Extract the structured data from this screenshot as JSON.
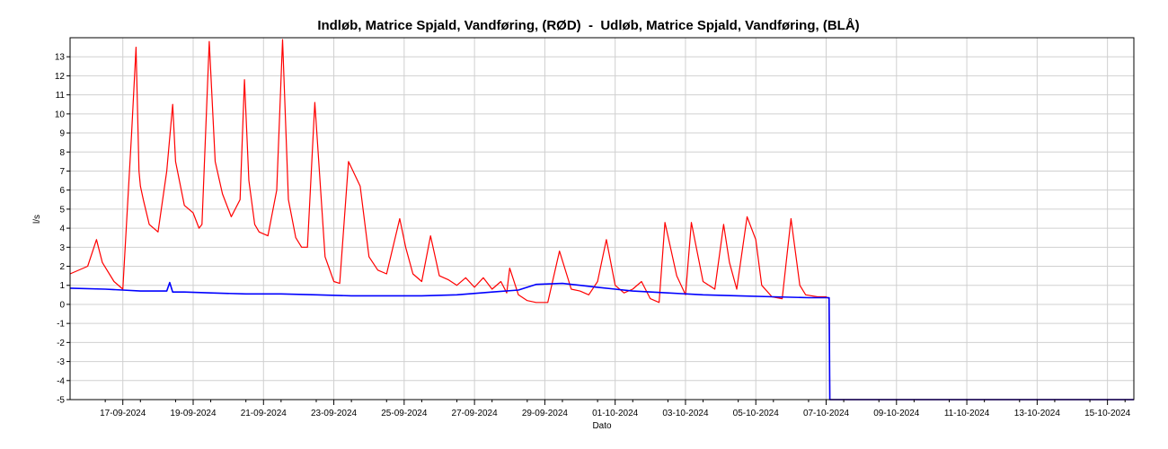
{
  "chart_data": {
    "type": "line",
    "title": "Indløb, Matrice Spjald, Vandføring, (RØD)  -  Udløb, Matrice Spjald, Vandføring, (BLÅ)",
    "xlabel": "Dato",
    "ylabel": "l/s",
    "ylim": [
      -5,
      14
    ],
    "yticks": [
      -5,
      -4,
      -3,
      -2,
      -1,
      0,
      1,
      2,
      3,
      4,
      5,
      6,
      7,
      8,
      9,
      10,
      11,
      12,
      13
    ],
    "xlim": [
      "2024-09-16T00:00",
      "2024-10-16T06:00"
    ],
    "xtick_labels": [
      "17-09-2024",
      "19-09-2024",
      "21-09-2024",
      "23-09-2024",
      "25-09-2024",
      "27-09-2024",
      "29-09-2024",
      "01-10-2024",
      "03-10-2024",
      "05-10-2024",
      "07-10-2024",
      "09-10-2024",
      "11-10-2024",
      "13-10-2024",
      "15-10-2024"
    ],
    "grid": true,
    "series": [
      {
        "name": "Indløb, Matrice Spjald, Vandføring",
        "color": "#ff0000",
        "x": [
          "2024-09-16T00:00",
          "2024-09-16T12:00",
          "2024-09-16T18:00",
          "2024-09-16T22:00",
          "2024-09-17T06:00",
          "2024-09-17T12:00",
          "2024-09-17T18:00",
          "2024-09-17T21:00",
          "2024-09-17T23:00",
          "2024-09-18T00:00",
          "2024-09-18T02:00",
          "2024-09-18T06:00",
          "2024-09-18T12:00",
          "2024-09-18T18:00",
          "2024-09-18T22:00",
          "2024-09-19T00:00",
          "2024-09-19T06:00",
          "2024-09-19T12:00",
          "2024-09-19T16:00",
          "2024-09-19T18:00",
          "2024-09-19T23:00",
          "2024-09-20T03:00",
          "2024-09-20T08:00",
          "2024-09-20T14:00",
          "2024-09-20T20:00",
          "2024-09-20T23:00",
          "2024-09-21T02:00",
          "2024-09-21T06:00",
          "2024-09-21T09:00",
          "2024-09-21T15:00",
          "2024-09-21T21:00",
          "2024-09-22T01:00",
          "2024-09-22T05:00",
          "2024-09-22T10:00",
          "2024-09-22T14:00",
          "2024-09-22T18:00",
          "2024-09-22T23:00",
          "2024-09-23T06:00",
          "2024-09-23T12:00",
          "2024-09-23T16:00",
          "2024-09-23T22:00",
          "2024-09-24T06:00",
          "2024-09-24T12:00",
          "2024-09-24T18:00",
          "2024-09-25T00:00",
          "2024-09-25T09:00",
          "2024-09-25T13:00",
          "2024-09-25T18:00",
          "2024-09-26T00:00",
          "2024-09-26T06:00",
          "2024-09-26T12:00",
          "2024-09-26T18:00",
          "2024-09-27T00:00",
          "2024-09-27T06:00",
          "2024-09-27T12:00",
          "2024-09-27T18:00",
          "2024-09-28T00:00",
          "2024-09-28T06:00",
          "2024-09-28T10:00",
          "2024-09-28T12:00",
          "2024-09-28T18:00",
          "2024-09-29T00:00",
          "2024-09-29T06:00",
          "2024-09-29T14:00",
          "2024-09-29T22:00",
          "2024-09-30T06:00",
          "2024-09-30T12:00",
          "2024-09-30T18:00",
          "2024-10-01T00:00",
          "2024-10-01T06:00",
          "2024-10-01T12:00",
          "2024-10-01T18:00",
          "2024-10-02T00:00",
          "2024-10-02T06:00",
          "2024-10-02T12:00",
          "2024-10-02T18:00",
          "2024-10-02T22:00",
          "2024-10-03T06:00",
          "2024-10-03T12:00",
          "2024-10-03T16:00",
          "2024-10-04T00:00",
          "2024-10-04T08:00",
          "2024-10-04T14:00",
          "2024-10-04T18:00",
          "2024-10-04T23:00",
          "2024-10-05T06:00",
          "2024-10-05T12:00",
          "2024-10-05T16:00",
          "2024-10-05T23:00",
          "2024-10-06T06:00",
          "2024-10-06T12:00",
          "2024-10-06T18:00",
          "2024-10-06T22:00",
          "2024-10-07T06:00",
          "2024-10-07T12:00",
          "2024-10-07T14:00",
          "2024-10-07T14:30",
          "2024-10-16T06:00"
        ],
        "y": [
          1.6,
          2.0,
          3.4,
          2.2,
          1.2,
          0.8,
          9.0,
          13.5,
          7.0,
          6.2,
          5.5,
          4.2,
          3.8,
          7.0,
          10.5,
          7.5,
          5.2,
          4.8,
          4.0,
          4.2,
          13.8,
          7.5,
          5.8,
          4.6,
          5.5,
          11.8,
          6.5,
          4.2,
          3.8,
          3.6,
          6.0,
          13.9,
          5.5,
          3.5,
          3.0,
          3.0,
          10.6,
          2.5,
          1.2,
          1.1,
          7.5,
          6.2,
          2.5,
          1.8,
          1.6,
          4.5,
          3.0,
          1.6,
          1.2,
          3.6,
          1.5,
          1.3,
          1.0,
          1.4,
          0.9,
          1.4,
          0.8,
          1.2,
          0.6,
          1.9,
          0.5,
          0.2,
          0.1,
          0.1,
          2.8,
          0.8,
          0.7,
          0.5,
          1.2,
          3.4,
          1.0,
          0.6,
          0.8,
          1.2,
          0.3,
          0.1,
          4.3,
          1.5,
          0.5,
          4.3,
          1.2,
          0.8,
          4.2,
          2.2,
          0.8,
          4.6,
          3.4,
          1.0,
          0.4,
          0.3,
          4.5,
          1.0,
          0.5,
          0.4,
          0.4,
          0.3,
          -5.0,
          -5.0
        ]
      },
      {
        "name": "Udløb, Matrice Spjald, Vandføring",
        "color": "#0000ff",
        "x": [
          "2024-09-16T00:00",
          "2024-09-17T00:00",
          "2024-09-17T12:00",
          "2024-09-18T00:00",
          "2024-09-18T18:00",
          "2024-09-18T20:00",
          "2024-09-18T22:00",
          "2024-09-19T06:00",
          "2024-09-20T00:00",
          "2024-09-21T00:00",
          "2024-09-22T00:00",
          "2024-09-23T00:00",
          "2024-09-24T00:00",
          "2024-09-25T00:00",
          "2024-09-26T00:00",
          "2024-09-27T00:00",
          "2024-09-28T00:00",
          "2024-09-28T18:00",
          "2024-09-29T06:00",
          "2024-09-30T00:00",
          "2024-09-30T12:00",
          "2024-10-01T00:00",
          "2024-10-01T12:00",
          "2024-10-02T00:00",
          "2024-10-03T00:00",
          "2024-10-04T00:00",
          "2024-10-05T00:00",
          "2024-10-06T00:00",
          "2024-10-07T00:00",
          "2024-10-07T14:00",
          "2024-10-07T14:30",
          "2024-10-16T06:00"
        ],
        "y": [
          0.85,
          0.8,
          0.75,
          0.7,
          0.7,
          1.15,
          0.65,
          0.65,
          0.6,
          0.55,
          0.55,
          0.5,
          0.45,
          0.45,
          0.45,
          0.5,
          0.65,
          0.75,
          1.05,
          1.1,
          1.0,
          0.9,
          0.8,
          0.7,
          0.6,
          0.5,
          0.45,
          0.4,
          0.35,
          0.35,
          -5.0,
          -5.0
        ]
      }
    ]
  }
}
